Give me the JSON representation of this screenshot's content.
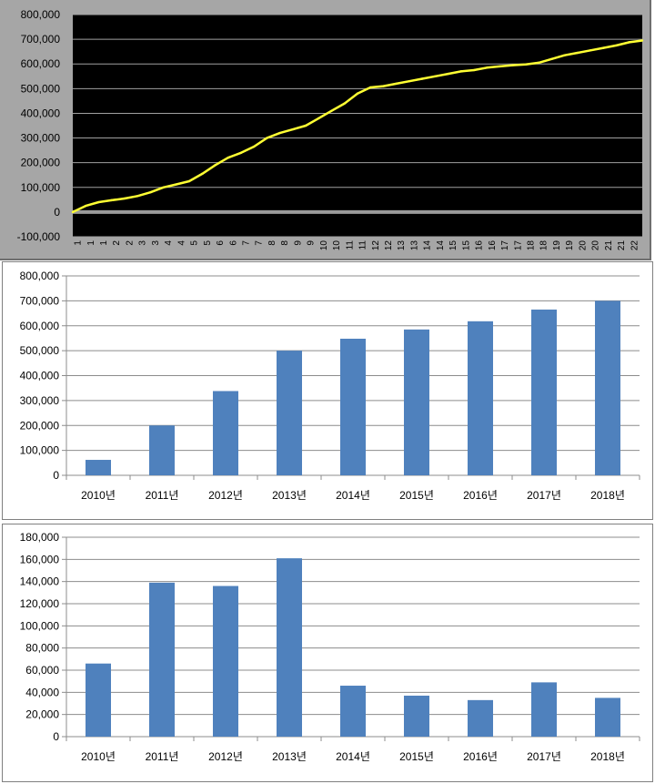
{
  "chart_data": [
    {
      "type": "line",
      "title": "",
      "xlabel": "",
      "ylabel": "",
      "ylim": [
        -100000,
        800000
      ],
      "yticks": [
        "800,000",
        "700,000",
        "600,000",
        "500,000",
        "400,000",
        "300,000",
        "200,000",
        "100,000",
        "0",
        "-100,000"
      ],
      "yticks_values": [
        800000,
        700000,
        600000,
        500000,
        400000,
        300000,
        200000,
        100000,
        0,
        -100000
      ],
      "x_tick_labels": [
        "1",
        "1",
        "1",
        "2",
        "2",
        "3",
        "3",
        "4",
        "4",
        "5",
        "5",
        "6",
        "6",
        "7",
        "7",
        "8",
        "8",
        "9",
        "9",
        "10",
        "10",
        "11",
        "11",
        "12",
        "12",
        "13",
        "13",
        "14",
        "14",
        "15",
        "15",
        "16",
        "16",
        "17",
        "17",
        "18",
        "18",
        "19",
        "19",
        "20",
        "20",
        "21",
        "21",
        "22"
      ],
      "grid": true,
      "background": "#000000",
      "line_color": "#ffff33",
      "series": [
        {
          "name": "",
          "x": [
            0,
            1,
            2,
            3,
            4,
            5,
            6,
            7,
            8,
            9,
            10,
            11,
            12,
            13,
            14,
            15,
            16,
            17,
            18,
            19,
            20,
            21,
            22,
            23,
            24,
            25,
            26,
            27,
            28,
            29,
            30,
            31,
            32,
            33,
            34,
            35,
            36,
            37,
            38,
            39,
            40,
            41,
            42,
            43,
            44
          ],
          "values": [
            0,
            25000,
            40000,
            48000,
            55000,
            65000,
            80000,
            100000,
            112000,
            125000,
            155000,
            190000,
            220000,
            240000,
            265000,
            300000,
            320000,
            335000,
            350000,
            380000,
            410000,
            440000,
            480000,
            505000,
            510000,
            520000,
            530000,
            540000,
            550000,
            560000,
            570000,
            575000,
            585000,
            590000,
            595000,
            598000,
            605000,
            620000,
            635000,
            645000,
            655000,
            665000,
            675000,
            688000,
            695000
          ]
        }
      ]
    },
    {
      "type": "bar",
      "title": "",
      "xlabel": "",
      "ylabel": "",
      "categories": [
        "2010년",
        "2011년",
        "2012년",
        "2013년",
        "2014년",
        "2015년",
        "2016년",
        "2017년",
        "2018년"
      ],
      "values": [
        62000,
        200000,
        338000,
        500000,
        548000,
        585000,
        618000,
        665000,
        700000
      ],
      "ylim": [
        0,
        800000
      ],
      "yticks": [
        "800,000",
        "700,000",
        "600,000",
        "500,000",
        "400,000",
        "300,000",
        "200,000",
        "100,000",
        "0"
      ],
      "yticks_values": [
        800000,
        700000,
        600000,
        500000,
        400000,
        300000,
        200000,
        100000,
        0
      ],
      "grid": true,
      "bar_color": "#4f81bd"
    },
    {
      "type": "bar",
      "title": "",
      "xlabel": "",
      "ylabel": "",
      "categories": [
        "2010년",
        "2011년",
        "2012년",
        "2013년",
        "2014년",
        "2015년",
        "2016년",
        "2017년",
        "2018년"
      ],
      "values": [
        66000,
        139000,
        136000,
        161000,
        46000,
        37000,
        33000,
        49000,
        35000
      ],
      "ylim": [
        0,
        180000
      ],
      "yticks": [
        "180,000",
        "160,000",
        "140,000",
        "120,000",
        "100,000",
        "80,000",
        "60,000",
        "40,000",
        "20,000",
        "0"
      ],
      "yticks_values": [
        180000,
        160000,
        140000,
        120000,
        100000,
        80000,
        60000,
        40000,
        20000,
        0
      ],
      "grid": true,
      "bar_color": "#4f81bd"
    }
  ]
}
